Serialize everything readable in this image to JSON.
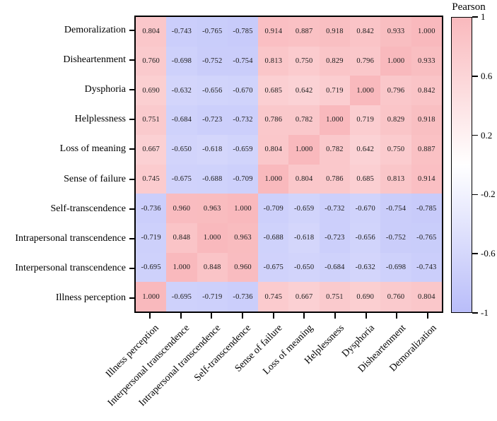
{
  "colorbar": {
    "title": "Pearson",
    "ticks": [
      {
        "label": "1",
        "value": 1
      },
      {
        "label": "0.6",
        "value": 0.6
      },
      {
        "label": "0.2",
        "value": 0.2
      },
      {
        "label": "-0.2",
        "value": -0.2
      },
      {
        "label": "-0.6",
        "value": -0.6
      },
      {
        "label": "-1",
        "value": -1
      }
    ],
    "max_color": "#f9b9bd",
    "mid_color": "#ffffff",
    "min_color": "#b9bdf9"
  },
  "chart_data": {
    "type": "heatmap",
    "title": "",
    "legend_title": "Pearson",
    "legend_position": "right",
    "value_range": [
      -1,
      1
    ],
    "cell_label_decimals": 3,
    "colorscale": [
      {
        "value": -1,
        "color": "#b9bdf9"
      },
      {
        "value": 0,
        "color": "#ffffff"
      },
      {
        "value": 1,
        "color": "#f9b9bd"
      }
    ],
    "rows": [
      "Demoralization",
      "Disheartenment",
      "Dysphoria",
      "Helplessness",
      "Loss of meaning",
      "Sense of failure",
      "Self-transcendence",
      "Intrapersonal transcendence",
      "Interpersonal transcendence",
      "Illness perception"
    ],
    "columns": [
      "Illness perception",
      "Interpersonal transcendence",
      "Intrapersonal transcendence",
      "Self-transcendence",
      "Sense of failure",
      "Loss of meaning",
      "Helplessness",
      "Dysphoria",
      "Disheartenment",
      "Demoralization"
    ],
    "values": [
      [
        0.804,
        -0.743,
        -0.765,
        -0.785,
        0.914,
        0.887,
        0.918,
        0.842,
        0.933,
        1.0
      ],
      [
        0.76,
        -0.698,
        -0.752,
        -0.754,
        0.813,
        0.75,
        0.829,
        0.796,
        1.0,
        0.933
      ],
      [
        0.69,
        -0.632,
        -0.656,
        -0.67,
        0.685,
        0.642,
        0.719,
        1.0,
        0.796,
        0.842
      ],
      [
        0.751,
        -0.684,
        -0.723,
        -0.732,
        0.786,
        0.782,
        1.0,
        0.719,
        0.829,
        0.918
      ],
      [
        0.667,
        -0.65,
        -0.618,
        -0.659,
        0.804,
        1.0,
        0.782,
        0.642,
        0.75,
        0.887
      ],
      [
        0.745,
        -0.675,
        -0.688,
        -0.709,
        1.0,
        0.804,
        0.786,
        0.685,
        0.813,
        0.914
      ],
      [
        -0.736,
        0.96,
        0.963,
        1.0,
        -0.709,
        -0.659,
        -0.732,
        -0.67,
        -0.754,
        -0.785
      ],
      [
        -0.719,
        0.848,
        1.0,
        0.963,
        -0.688,
        -0.618,
        -0.723,
        -0.656,
        -0.752,
        -0.765
      ],
      [
        -0.695,
        1.0,
        0.848,
        0.96,
        -0.675,
        -0.65,
        -0.684,
        -0.632,
        -0.698,
        -0.743
      ],
      [
        1.0,
        -0.695,
        -0.719,
        -0.736,
        0.745,
        0.667,
        0.751,
        0.69,
        0.76,
        0.804
      ]
    ]
  }
}
